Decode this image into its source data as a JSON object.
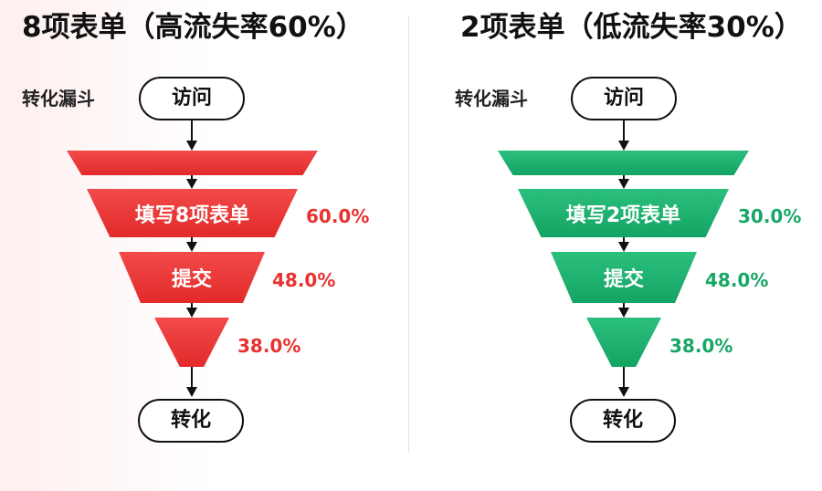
{
  "colors": {
    "left_accent": "#e8322f",
    "right_accent": "#17a765"
  },
  "left": {
    "title": "8项表单（高流失率60%）",
    "funnel_label": "转化漏斗",
    "start_label": "访问",
    "end_label": "转化",
    "stages": [
      {
        "label": "",
        "rate": ""
      },
      {
        "label": "填写8项表单",
        "rate": "60.0%"
      },
      {
        "label": "提交",
        "rate": "48.0%"
      },
      {
        "label": "",
        "rate": "38.0%"
      }
    ]
  },
  "right": {
    "title": "2项表单（低流失率30%）",
    "funnel_label": "转化漏斗",
    "start_label": "访问",
    "end_label": "转化",
    "stages": [
      {
        "label": "",
        "rate": ""
      },
      {
        "label": "填写2项表单",
        "rate": "30.0%"
      },
      {
        "label": "提交",
        "rate": "48.0%"
      },
      {
        "label": "",
        "rate": "38.0%"
      }
    ]
  }
}
